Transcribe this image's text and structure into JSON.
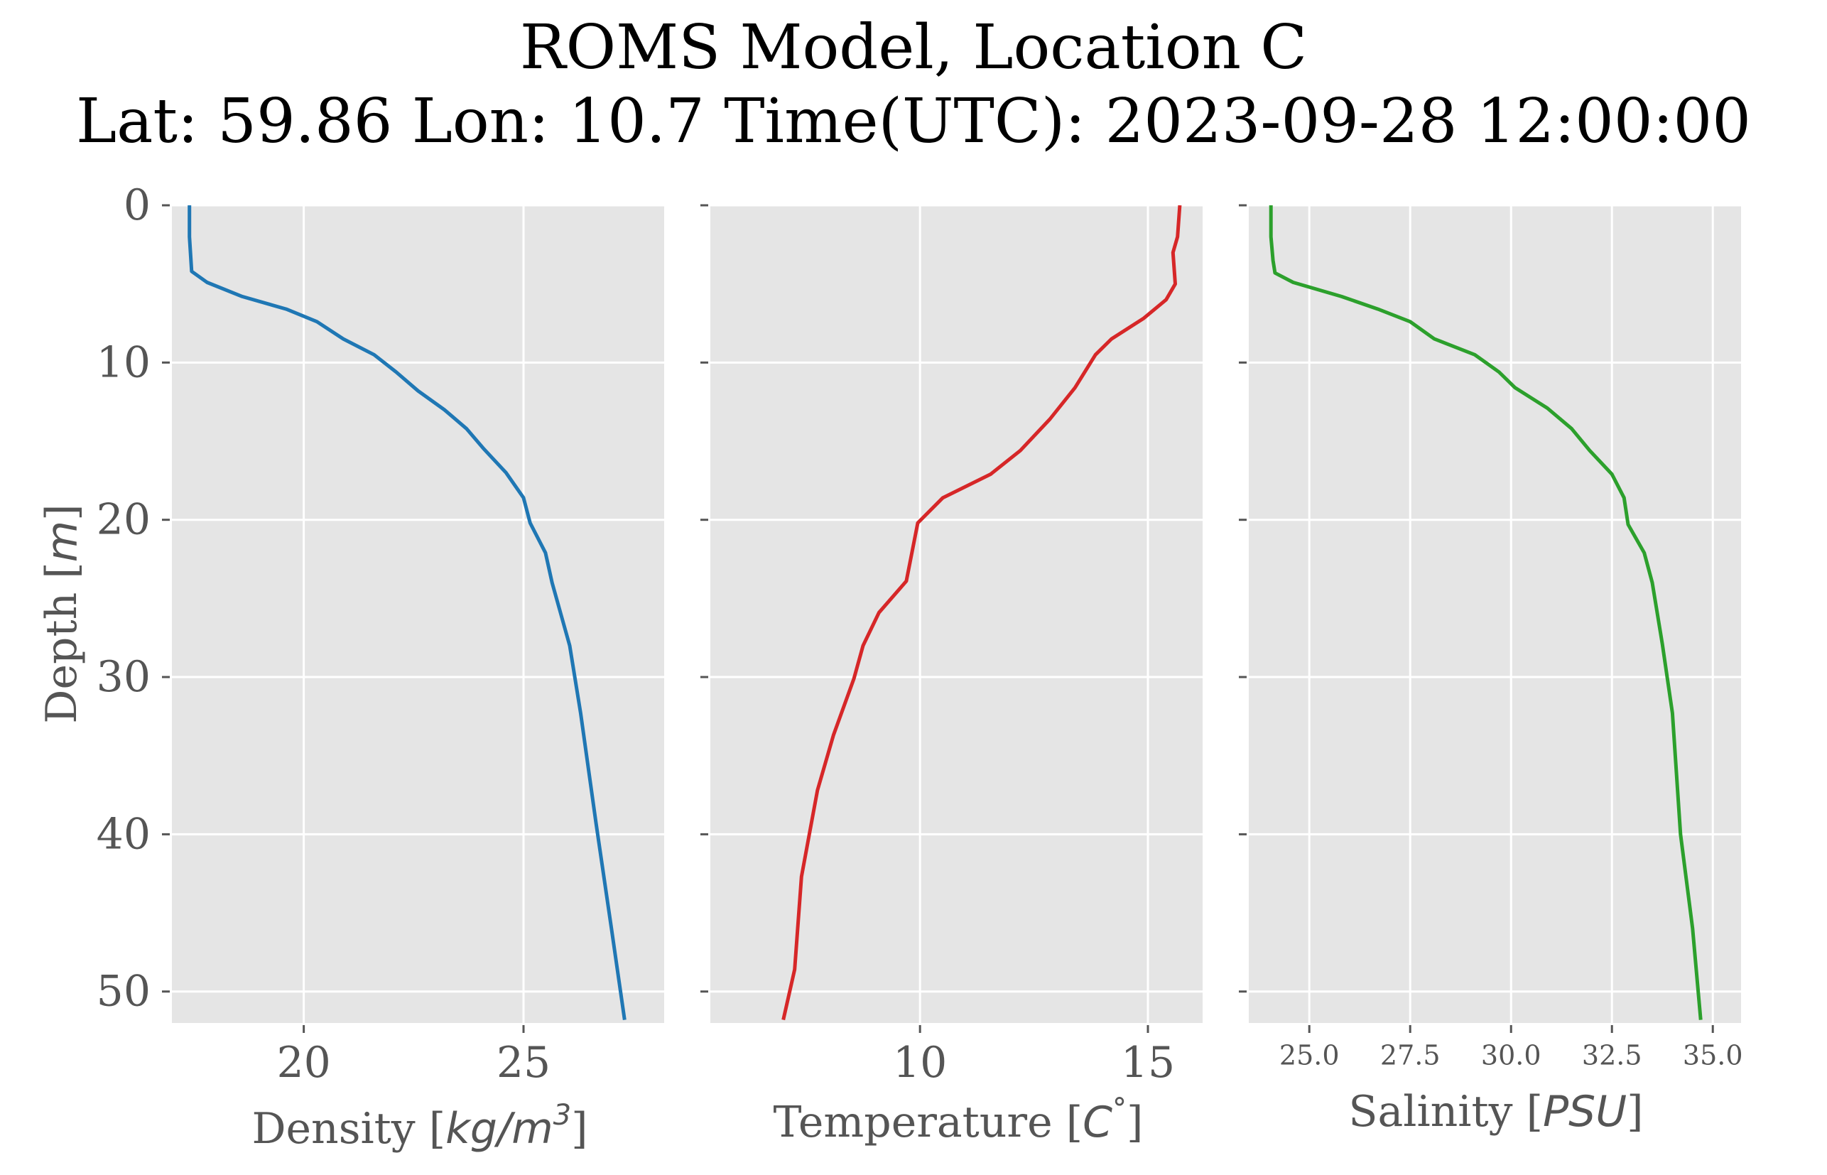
{
  "title_line1": "ROMS Model, Location C",
  "title_line2": "Lat: 59.86 Lon: 10.7 Time(UTC): 2023-09-28 12:00:00",
  "colors": {
    "panel_bg": "#e5e5e5",
    "grid": "#ffffff",
    "tick_text": "#555555",
    "density": "#1f77b4",
    "temperature": "#d62728",
    "salinity": "#2ca02c"
  },
  "chart_data": [
    {
      "type": "line",
      "panel": "density",
      "xlabel_text": "Density [",
      "xlabel_math": "kg/m",
      "xlabel_sup": "3",
      "xlabel_end": "]",
      "ylabel_text": "Depth [",
      "ylabel_math": "m",
      "ylabel_end": "]",
      "xlim": [
        17,
        28.2
      ],
      "ylim": [
        52,
        0
      ],
      "y_inverted": true,
      "xticks": [
        20,
        25
      ],
      "xtick_labels": [
        "20",
        "25"
      ],
      "yticks": [
        0,
        10,
        20,
        30,
        40,
        50
      ],
      "ytick_labels": [
        "0",
        "10",
        "20",
        "30",
        "40",
        "50"
      ],
      "grid": true,
      "series": [
        {
          "color": "#1f77b4",
          "x": [
            17.4,
            17.4,
            17.45,
            17.8,
            18.6,
            19.6,
            20.3,
            20.9,
            21.6,
            22.1,
            22.6,
            23.2,
            23.7,
            24.1,
            24.6,
            25.0,
            25.15,
            25.5,
            25.65,
            25.85,
            26.05,
            26.3,
            26.65,
            27.0,
            27.3
          ],
          "y": [
            0,
            2,
            4.2,
            4.9,
            5.8,
            6.6,
            7.4,
            8.5,
            9.5,
            10.6,
            11.8,
            13.0,
            14.2,
            15.5,
            17.0,
            18.6,
            20.2,
            22.1,
            24.0,
            26.0,
            28.0,
            32.3,
            39.3,
            46.0,
            51.8
          ]
        }
      ]
    },
    {
      "type": "line",
      "panel": "temperature",
      "xlabel_text": "Temperature [",
      "xlabel_math": "C",
      "xlabel_sup": "°",
      "xlabel_end": "]",
      "xlim": [
        5.4,
        16.2
      ],
      "ylim": [
        52,
        0
      ],
      "y_inverted": true,
      "xticks": [
        10,
        15
      ],
      "xtick_labels": [
        "10",
        "15"
      ],
      "grid": true,
      "series": [
        {
          "color": "#d62728",
          "x": [
            15.7,
            15.65,
            15.55,
            15.6,
            15.4,
            14.9,
            14.2,
            13.85,
            13.4,
            12.85,
            12.2,
            11.55,
            10.5,
            9.95,
            9.7,
            9.1,
            8.75,
            8.55,
            8.1,
            7.75,
            7.4,
            7.25,
            7.0
          ],
          "y": [
            0,
            2,
            3,
            5,
            6,
            7.2,
            8.5,
            9.5,
            11.6,
            13.6,
            15.6,
            17.1,
            18.6,
            20.2,
            23.9,
            25.9,
            28.0,
            30.1,
            33.7,
            37.2,
            42.7,
            48.6,
            51.8
          ]
        }
      ]
    },
    {
      "type": "line",
      "panel": "salinity",
      "xlabel_text": "Salinity [",
      "xlabel_math": "PSU",
      "xlabel_sup": "",
      "xlabel_end": "]",
      "xlim": [
        23.5,
        35.7
      ],
      "ylim": [
        52,
        0
      ],
      "y_inverted": true,
      "xticks": [
        25.0,
        27.5,
        30.0,
        32.5,
        35.0
      ],
      "xtick_labels": [
        "25.0",
        "27.5",
        "30.0",
        "32.5",
        "35.0"
      ],
      "grid": true,
      "series": [
        {
          "color": "#2ca02c",
          "x": [
            24.05,
            24.05,
            24.1,
            24.15,
            24.6,
            25.8,
            26.7,
            27.5,
            28.1,
            29.1,
            29.7,
            30.1,
            30.9,
            31.5,
            31.95,
            32.5,
            32.8,
            32.9,
            33.3,
            33.5,
            33.75,
            34.0,
            34.2,
            34.5,
            34.7
          ],
          "y": [
            0,
            2,
            3.5,
            4.3,
            4.9,
            5.8,
            6.6,
            7.4,
            8.5,
            9.5,
            10.6,
            11.6,
            12.9,
            14.2,
            15.6,
            17.1,
            18.6,
            20.3,
            22.1,
            24.0,
            27.9,
            32.3,
            40.0,
            46.0,
            51.8
          ]
        }
      ]
    }
  ]
}
